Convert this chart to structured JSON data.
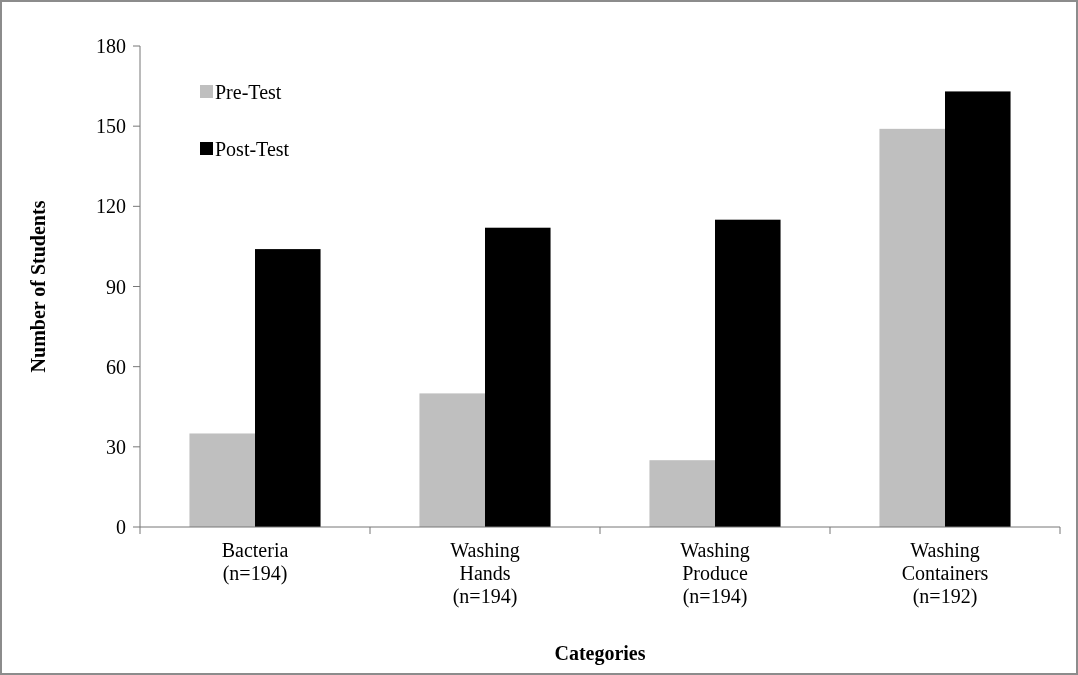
{
  "chart_data": {
    "type": "bar",
    "xlabel": "Categories",
    "ylabel": "Number of Students",
    "categories": [
      "Bacteria\n(n=194)",
      "Washing\nHands\n(n=194)",
      "Washing\nProduce\n(n=194)",
      "Washing\nContainers\n(n=192)"
    ],
    "series": [
      {
        "name": "Pre-Test",
        "color": "#bfbfbf",
        "values": [
          35,
          50,
          25,
          149
        ]
      },
      {
        "name": "Post-Test",
        "color": "#000000",
        "values": [
          104,
          112,
          115,
          163
        ]
      }
    ],
    "ylim": [
      0,
      180
    ],
    "yticks": [
      0,
      30,
      60,
      90,
      120,
      150,
      180
    ],
    "grid": false,
    "legend": "top left"
  }
}
